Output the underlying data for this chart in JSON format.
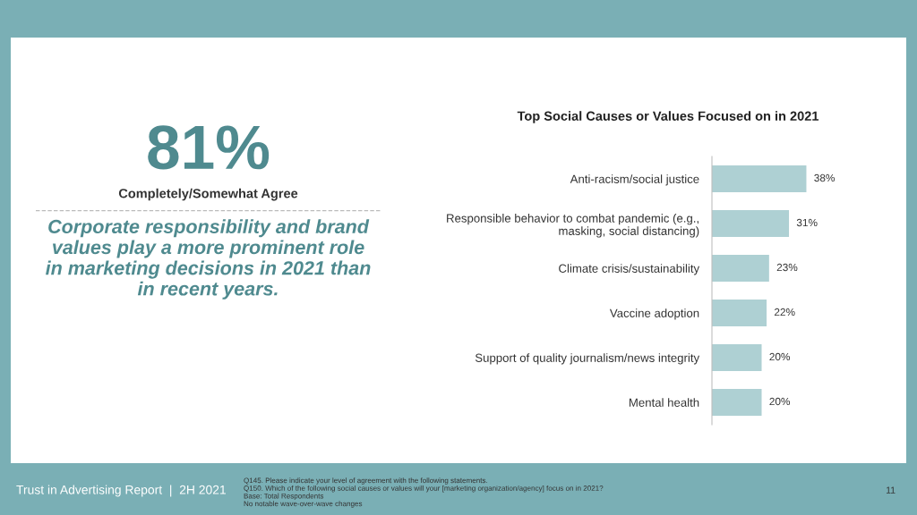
{
  "chart_data": [
    {
      "type": "other",
      "title": "81%",
      "subtitle": "Completely/Somewhat Agree",
      "annotations": [
        "Corporate responsibility and brand\nvalues play a more prominent role\nin marketing decisions in 2021 than\nin recent years."
      ]
    },
    {
      "type": "bar",
      "orientation": "horizontal",
      "title": "Top Social Causes or Values Focused on in 2021",
      "categories": [
        "Anti-racism/social justice",
        "Responsible behavior to combat pandemic (e.g.,\nmasking, social distancing)",
        "Climate crisis/sustainability",
        "Vaccine adoption",
        "Support of quality journalism/news integrity",
        "Mental health"
      ],
      "values": [
        38,
        31,
        23,
        22,
        20,
        20
      ],
      "value_labels": [
        "38%",
        "31%",
        "23%",
        "22%",
        "20%",
        "20%"
      ],
      "color": "#aed0d3",
      "tick_labels": "y",
      "grid": false,
      "legend": false,
      "annotations": [
        "Trust in Advertising Report  |  2H 2021",
        "Q145. Please indicate your level of agreement with the following statements.\nQ150. Which of the following social causes or values will your [marketing organization/agency] focus on in 2021?\nBase: Total Respondents\nNo notable wave-over-wave changes",
        "11"
      ]
    }
  ]
}
